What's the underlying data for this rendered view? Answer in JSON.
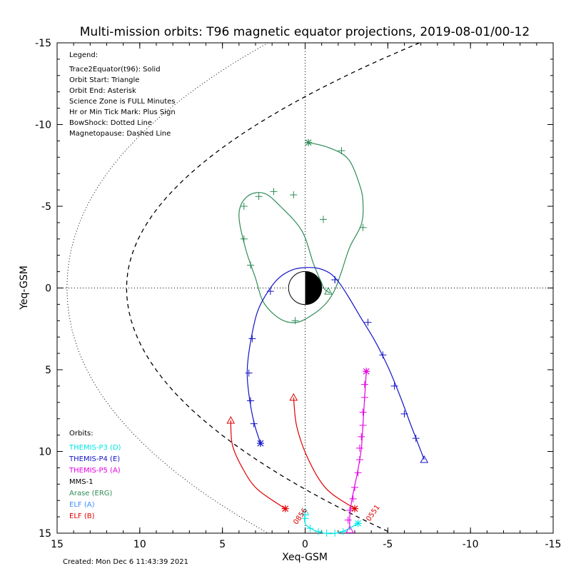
{
  "chart_data": {
    "type": "line",
    "title": "Multi-mission orbits: T96 magnetic equator projections, 2019-08-01/00-12",
    "xlabel": "Xeq-GSM",
    "ylabel": "Yeq-GSM",
    "xlim": [
      15,
      -15
    ],
    "ylim": [
      15,
      -15
    ],
    "x_ticks": [
      "15",
      "10",
      "5",
      "0",
      "-5",
      "-10",
      "-15"
    ],
    "y_ticks": [
      "-15",
      "-10",
      "-5",
      "0",
      "5",
      "10",
      "15"
    ],
    "grid": false,
    "legend": {
      "heading": "Legend:",
      "lines": [
        "Trace2Equator(t96): Solid",
        "Orbit Start: Triangle",
        "Orbit End: Asterisk",
        "Science Zone is FULL Minutes",
        "Hr or Min Tick Mark: Plus Sign",
        "BowShock: Dotted Line",
        "Magnetopause: Dashed Line"
      ]
    },
    "orbits_heading": "Orbits:",
    "orbits": [
      {
        "name": "THEMIS-P3 (D)",
        "color": "#00e5e5"
      },
      {
        "name": "THEMIS-P4 (E)",
        "color": "#1414c8"
      },
      {
        "name": "THEMIS-P5 (A)",
        "color": "#e600e6"
      },
      {
        "name": "MMS-1",
        "color": "#000000"
      },
      {
        "name": "Arase (ERG)",
        "color": "#2e8b57"
      },
      {
        "name": "ELF (A)",
        "color": "#3c8cff"
      },
      {
        "name": "ELF (B)",
        "color": "#e00000"
      }
    ],
    "created": "Created: Mon Dec  6 11:43:39 2021",
    "annotations": [
      {
        "text": "0856",
        "x": 0.5,
        "y": 14.5,
        "color": "#e00000"
      },
      {
        "text": "0551",
        "x": -3.9,
        "y": 14.3,
        "color": "#e00000"
      }
    ],
    "series": [
      {
        "name": "Arase (ERG)",
        "color": "#2e8b57",
        "points": [
          [
            -1.5,
            0.3
          ],
          [
            -1.2,
            0.1
          ],
          [
            -1.0,
            -0.3
          ],
          [
            -0.5,
            -1.5
          ],
          [
            0.2,
            -3.5
          ],
          [
            1.5,
            -5.0
          ],
          [
            2.5,
            -5.8
          ],
          [
            3.5,
            -5.6
          ],
          [
            4.0,
            -4.5
          ],
          [
            3.6,
            -2.4
          ],
          [
            3.0,
            -0.6
          ],
          [
            2.5,
            0.9
          ],
          [
            1.5,
            1.9
          ],
          [
            0.5,
            2.1
          ],
          [
            -0.5,
            1.6
          ],
          [
            -1.3,
            0.9
          ],
          [
            -1.8,
            0.1
          ],
          [
            -2.2,
            -1.0
          ],
          [
            -2.7,
            -2.5
          ],
          [
            -3.4,
            -3.9
          ],
          [
            -3.5,
            -5.2
          ],
          [
            -3.3,
            -6.3
          ],
          [
            -2.6,
            -7.9
          ],
          [
            -1.4,
            -8.6
          ],
          [
            -0.2,
            -8.9
          ]
        ],
        "ticks": [
          [
            -1.8,
            -0.5
          ],
          [
            -1.1,
            -4.2
          ],
          [
            0.7,
            -5.7
          ],
          [
            1.9,
            -5.9
          ],
          [
            2.8,
            -5.6
          ],
          [
            3.7,
            -5.0
          ],
          [
            3.7,
            -3.0
          ],
          [
            3.3,
            -1.4
          ],
          [
            0.6,
            2.0
          ],
          [
            -2.2,
            -8.4
          ],
          [
            -3.5,
            -3.7
          ]
        ],
        "start": [
          -1.4,
          0.2
        ],
        "end": [
          -0.2,
          -8.9
        ]
      },
      {
        "name": "THEMIS-P4 (E)",
        "color": "#1414c8",
        "points": [
          [
            2.7,
            9.5
          ],
          [
            3.1,
            8.2
          ],
          [
            3.4,
            6.5
          ],
          [
            3.5,
            5.0
          ],
          [
            3.3,
            3.3
          ],
          [
            2.9,
            1.5
          ],
          [
            2.3,
            0.3
          ],
          [
            1.6,
            -0.6
          ],
          [
            0.8,
            -1.1
          ],
          [
            0.0,
            -1.25
          ],
          [
            -0.8,
            -1.2
          ],
          [
            -1.5,
            -0.9
          ],
          [
            -2.0,
            -0.4
          ],
          [
            -2.6,
            0.5
          ],
          [
            -3.3,
            1.7
          ],
          [
            -4.2,
            3.2
          ],
          [
            -5.0,
            4.8
          ],
          [
            -5.7,
            6.5
          ],
          [
            -6.4,
            8.4
          ],
          [
            -7.2,
            10.5
          ]
        ],
        "ticks": [
          [
            2.7,
            9.5
          ],
          [
            3.1,
            8.3
          ],
          [
            3.3,
            6.9
          ],
          [
            3.4,
            5.2
          ],
          [
            3.2,
            3.1
          ],
          [
            2.1,
            0.2
          ],
          [
            -1.8,
            -0.5
          ],
          [
            -3.8,
            2.1
          ],
          [
            -4.7,
            4.1
          ],
          [
            -5.4,
            6.0
          ],
          [
            -6.0,
            7.7
          ],
          [
            -6.7,
            9.2
          ]
        ],
        "start": [
          -7.2,
          10.5
        ],
        "end": [
          2.7,
          9.5
        ]
      },
      {
        "name": "THEMIS-P5 (A)",
        "color": "#e600e6",
        "points": [
          [
            -3.7,
            5.1
          ],
          [
            -3.6,
            6.7
          ],
          [
            -3.5,
            8.3
          ],
          [
            -3.4,
            9.8
          ],
          [
            -3.2,
            11.1
          ],
          [
            -3.0,
            12.1
          ],
          [
            -2.8,
            13.1
          ],
          [
            -2.7,
            14.0
          ],
          [
            -2.7,
            14.8
          ]
        ],
        "ticks": [
          [
            -3.6,
            5.9
          ],
          [
            -3.6,
            6.7
          ],
          [
            -3.5,
            7.6
          ],
          [
            -3.5,
            8.4
          ],
          [
            -3.4,
            9.1
          ],
          [
            -3.3,
            9.8
          ],
          [
            -3.3,
            10.5
          ],
          [
            -3.2,
            11.3
          ],
          [
            -3.0,
            12.2
          ],
          [
            -2.9,
            12.9
          ],
          [
            -2.7,
            13.6
          ],
          [
            -2.6,
            14.2
          ]
        ],
        "start": [
          -2.7,
          14.8
        ],
        "end": [
          -3.7,
          5.1
        ]
      },
      {
        "name": "THEMIS-P3 (D)",
        "color": "#00e5e5",
        "points": [
          [
            0.0,
            13.7
          ],
          [
            0.0,
            14.4
          ],
          [
            -0.5,
            14.8
          ],
          [
            -1.2,
            15.0
          ],
          [
            -1.9,
            15.0
          ],
          [
            -2.5,
            14.8
          ],
          [
            -3.2,
            14.4
          ]
        ],
        "ticks": [
          [
            0.0,
            14.1
          ],
          [
            -0.3,
            14.7
          ],
          [
            -0.8,
            14.9
          ],
          [
            -1.3,
            15.0
          ],
          [
            -1.8,
            15.0
          ],
          [
            -2.3,
            14.9
          ]
        ],
        "start": [
          0.0,
          13.7
        ],
        "end": [
          -3.2,
          14.4
        ]
      },
      {
        "name": "ELF (B) 0856",
        "color": "#e00000",
        "points": [
          [
            4.5,
            8.1
          ],
          [
            4.4,
            9.6
          ],
          [
            3.8,
            11.0
          ],
          [
            2.9,
            12.3
          ],
          [
            1.2,
            13.5
          ]
        ],
        "ticks": [],
        "start": [
          4.5,
          8.1
        ],
        "end": [
          1.2,
          13.5
        ]
      },
      {
        "name": "ELF (B) 0551",
        "color": "#e00000",
        "points": [
          [
            0.7,
            6.7
          ],
          [
            0.5,
            8.5
          ],
          [
            -0.2,
            10.5
          ],
          [
            -1.3,
            12.3
          ],
          [
            -3.0,
            13.5
          ]
        ],
        "ticks": [],
        "start": [
          0.7,
          6.7
        ],
        "end": [
          -3.0,
          13.5
        ]
      }
    ],
    "magnetopause": {
      "style": "dashed",
      "color": "#000000"
    },
    "bowshock": {
      "style": "dotted",
      "color": "#000000"
    }
  }
}
